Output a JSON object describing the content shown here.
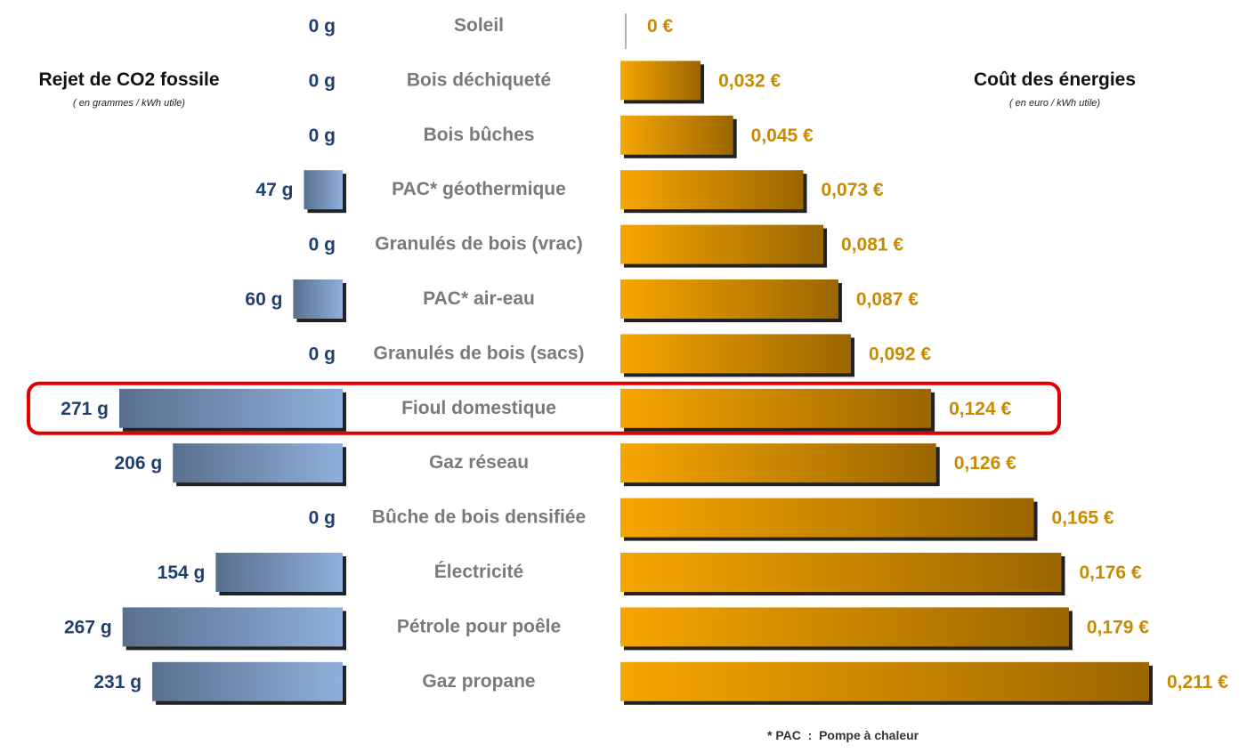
{
  "left_panel": {
    "title": "Rejet de CO2 fossile",
    "subtitle": "( en grammes / kWh utile)"
  },
  "right_panel": {
    "title": "Coût des énergies",
    "subtitle": "( en euro / kWh utile)"
  },
  "footnote": "* PAC  :  Pompe à chaleur",
  "colors": {
    "co2_bar_dark": "#5a6f8e",
    "co2_bar_light": "#8fb0db",
    "cost_bar_light": "#f7a600",
    "cost_bar_dark": "#9b6600",
    "co2_label": "#1f3f6e",
    "cost_label": "#c88a00",
    "category_label": "#7a7a7a",
    "highlight": "#e00000"
  },
  "chart_data": {
    "type": "bar",
    "categories": [
      "Soleil",
      "Bois déchiqueté",
      "Bois bûches",
      "PAC* géothermique",
      "Granulés de bois (vrac)",
      "PAC* air-eau",
      "Granulés de bois (sacs)",
      "Fioul domestique",
      "Gaz réseau",
      "Bûche de bois densifiée",
      "Électricité",
      "Pétrole pour poêle",
      "Gaz propane"
    ],
    "series": [
      {
        "name": "Rejet de CO2 fossile",
        "values": [
          0,
          0,
          0,
          47,
          0,
          60,
          0,
          271,
          206,
          0,
          154,
          267,
          231
        ],
        "labels": [
          "0 g",
          "0 g",
          "0 g",
          "47 g",
          "0 g",
          "60 g",
          "0 g",
          "271 g",
          "206 g",
          "0 g",
          "154 g",
          "267 g",
          "231 g"
        ]
      },
      {
        "name": "Coût des énergies",
        "values": [
          0,
          0.032,
          0.045,
          0.073,
          0.081,
          0.087,
          0.092,
          0.124,
          0.126,
          0.165,
          0.176,
          0.179,
          0.211
        ],
        "labels": [
          "0 €",
          "0,032 €",
          "0,045 €",
          "0,073 €",
          "0,081 €",
          "0,087 €",
          "0,092 €",
          "0,124 €",
          "0,126 €",
          "0,165 €",
          "0,176 €",
          "0,179 €",
          "0,211 €"
        ]
      }
    ],
    "highlighted_category": "Fioul domestique",
    "legend": "none",
    "grid": false
  }
}
